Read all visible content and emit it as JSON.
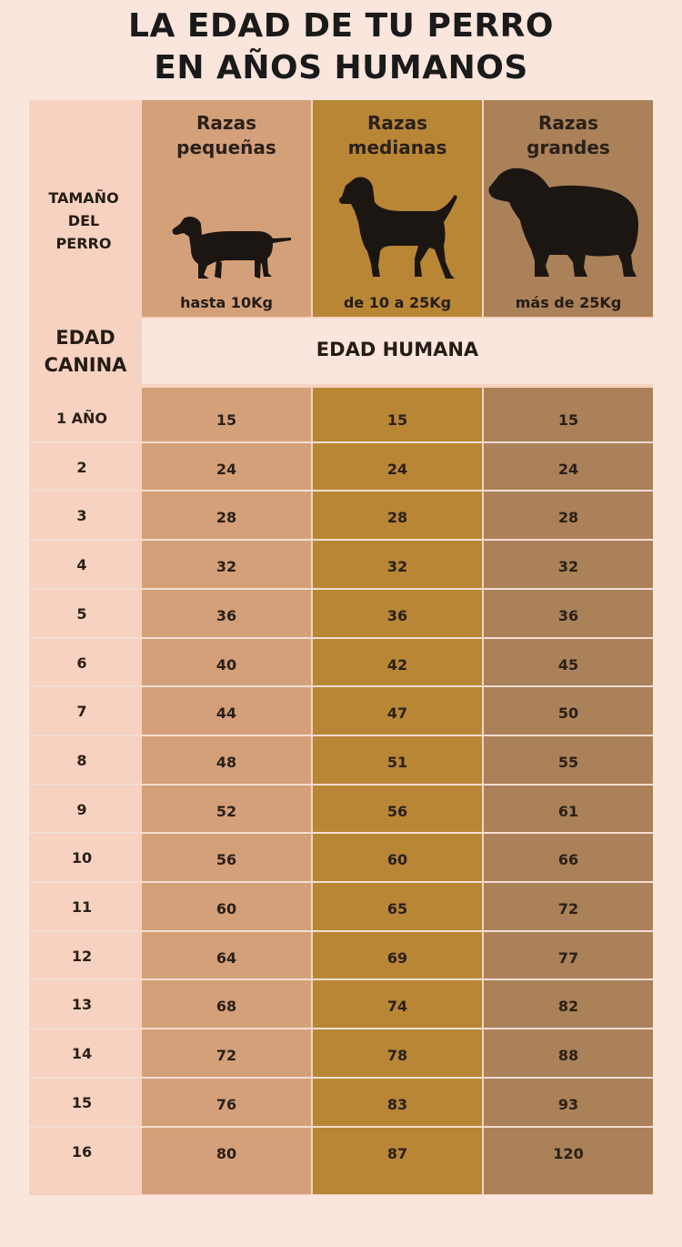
{
  "title": {
    "line1": "LA EDAD DE TU PERRO",
    "line2": "EN AÑOS HUMANOS"
  },
  "size_label": "TAMAÑO\nDEL\nPERRO",
  "age_label": "EDAD\nCANINA",
  "human_label": "EDAD HUMANA",
  "colors": {
    "background": "#fbe6dd",
    "panel": "#f7d2c0",
    "small": "#d4a07a",
    "medium": "#b98636",
    "large": "#aa8158",
    "silhouette": "#1c1612"
  },
  "columns": [
    {
      "breed": "Razas\npequeñas",
      "weight": "hasta 10Kg",
      "icon": "dachshund-icon"
    },
    {
      "breed": "Razas\nmedianas",
      "weight": "de 10 a 25Kg",
      "icon": "pointer-dog-icon"
    },
    {
      "breed": "Razas\ngrandes",
      "weight": "más de 25Kg",
      "icon": "newfoundland-dog-icon"
    }
  ],
  "chart_data": {
    "type": "table",
    "row_header": "EDAD CANINA",
    "column_group_header": "EDAD HUMANA",
    "categories": [
      "1 AÑO",
      "2",
      "3",
      "4",
      "5",
      "6",
      "7",
      "8",
      "9",
      "10",
      "11",
      "12",
      "13",
      "14",
      "15",
      "16"
    ],
    "series": [
      {
        "name": "Razas pequeñas",
        "values": [
          15,
          24,
          28,
          32,
          36,
          40,
          44,
          48,
          52,
          56,
          60,
          64,
          68,
          72,
          76,
          80
        ]
      },
      {
        "name": "Razas medianas",
        "values": [
          15,
          24,
          28,
          32,
          36,
          42,
          47,
          51,
          56,
          60,
          65,
          69,
          74,
          78,
          83,
          87
        ]
      },
      {
        "name": "Razas grandes",
        "values": [
          15,
          24,
          28,
          32,
          36,
          45,
          50,
          55,
          61,
          66,
          72,
          77,
          82,
          88,
          93,
          120
        ]
      }
    ]
  }
}
